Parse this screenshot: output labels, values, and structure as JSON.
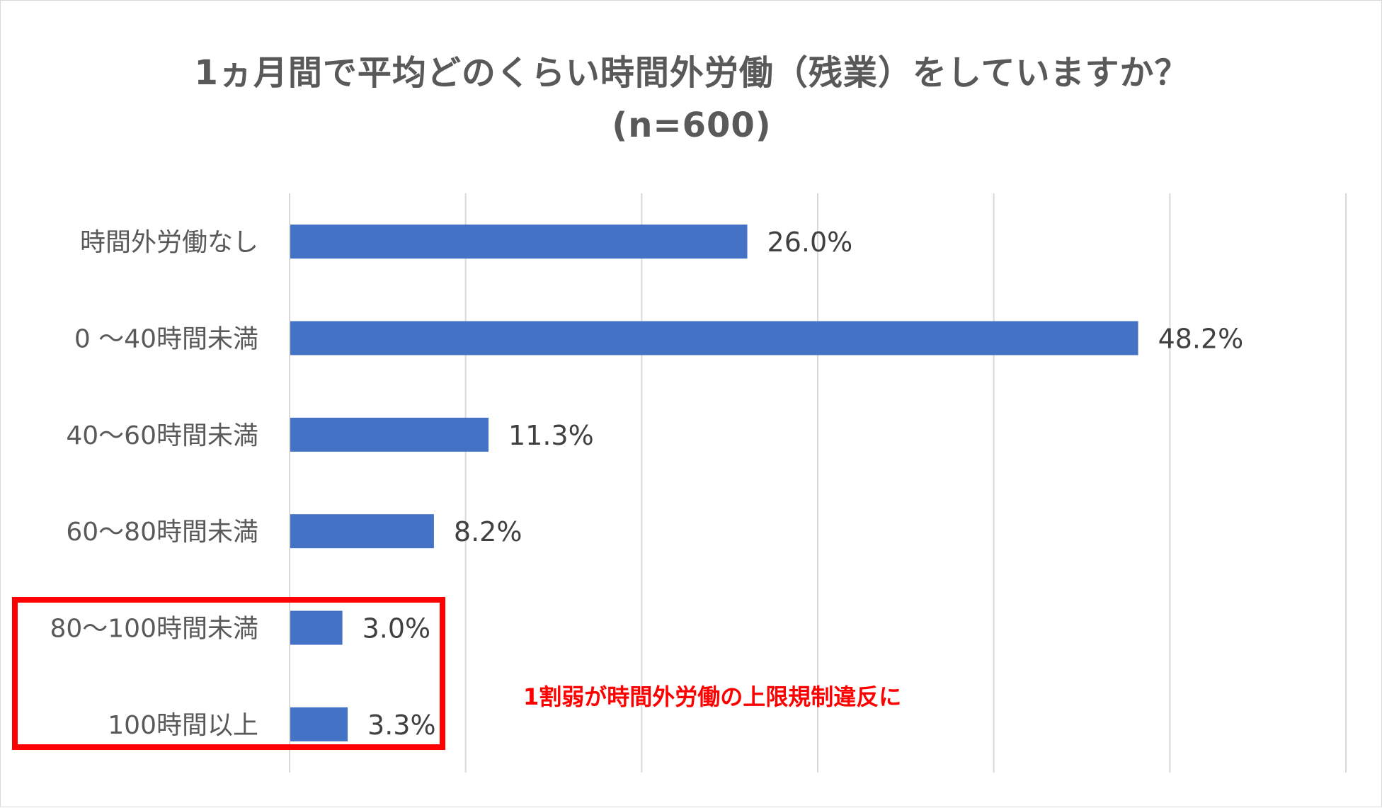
{
  "chart_data": {
    "type": "bar",
    "orientation": "horizontal",
    "title": "1ヵ月間で平均どのくらい時間外労働（残業）をしていますか？",
    "subtitle": "(n=600)",
    "categories": [
      "時間外労働なし",
      "0 〜40時間未満",
      "40〜60時間未満",
      "60〜80時間未満",
      "80〜100時間未満",
      "100時間以上"
    ],
    "values": [
      26.0,
      48.2,
      11.3,
      8.2,
      3.0,
      3.3
    ],
    "value_labels": [
      "26.0%",
      "48.2%",
      "11.3%",
      "8.2%",
      "3.0%",
      "3.3%"
    ],
    "xlim": [
      0,
      60
    ],
    "grid": true,
    "bar_color": "#4472c4",
    "annotation": "1割弱が時間外労働の上限規制違反に",
    "highlight_color": "#ff0000"
  }
}
